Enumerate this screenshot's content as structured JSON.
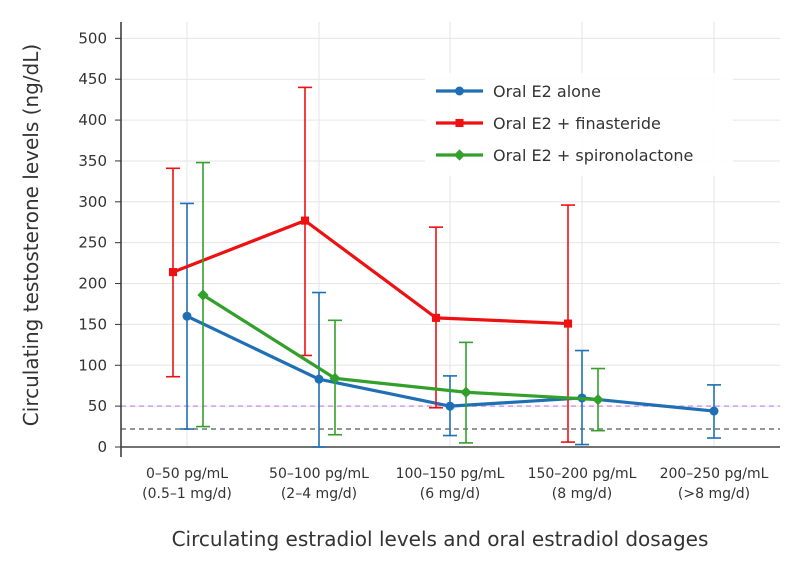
{
  "chart_data": {
    "type": "line",
    "xlabel": "Circulating estradiol levels and oral estradiol dosages",
    "ylabel": "Circulating testosterone levels (ng/dL)",
    "ylim": [
      0,
      520
    ],
    "yticks": [
      0,
      50,
      100,
      150,
      200,
      250,
      300,
      350,
      400,
      450,
      500
    ],
    "categories": [
      [
        "0–50 pg/mL",
        "(0.5–1 mg/d)"
      ],
      [
        "50–100 pg/mL",
        "(2–4 mg/d)"
      ],
      [
        "100–150 pg/mL",
        "(6 mg/d)"
      ],
      [
        "150–200 pg/mL",
        "(8 mg/d)"
      ],
      [
        "200–250 pg/mL",
        "(>8 mg/d)"
      ]
    ],
    "grid": true,
    "legend_position": "top-right",
    "series": [
      {
        "name": "Oral E2 alone",
        "color": "#1f6fb4",
        "marker": "circle",
        "values": [
          160,
          83,
          50,
          60,
          44
        ],
        "error_low": [
          22,
          0,
          14,
          3,
          11
        ],
        "error_high": [
          298,
          189,
          87,
          118,
          76
        ]
      },
      {
        "name": "Oral E2 + finasteride",
        "color": "#ee1111",
        "marker": "square",
        "values": [
          214,
          277,
          158,
          151,
          null
        ],
        "error_low": [
          86,
          112,
          48,
          6,
          null
        ],
        "error_high": [
          341,
          440,
          269,
          296,
          null
        ]
      },
      {
        "name": "Oral E2 + spironolactone",
        "color": "#33a02c",
        "marker": "diamond",
        "values": [
          186,
          84,
          67,
          58,
          null
        ],
        "error_low": [
          25,
          15,
          5,
          20,
          null
        ],
        "error_high": [
          348,
          155,
          128,
          96,
          null
        ]
      }
    ],
    "reference_lines": [
      {
        "value": 50,
        "color": "#d6a8ee",
        "style": "dashed"
      },
      {
        "value": 22,
        "color": "#888888",
        "style": "dashed"
      }
    ]
  }
}
